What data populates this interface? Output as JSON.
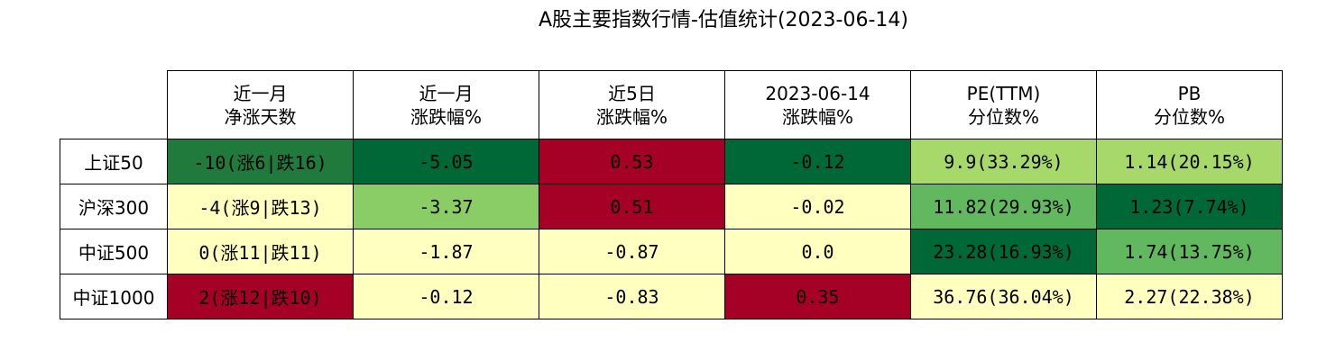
{
  "chart_data": {
    "type": "table",
    "title": "A股主要指数行情-估值统计(2023-06-14)",
    "columns": [
      [
        "近一月",
        "净涨天数"
      ],
      [
        "近一月",
        "涨跌幅%"
      ],
      [
        "近5日",
        "涨跌幅%"
      ],
      [
        "2023-06-14",
        "涨跌幅%"
      ],
      [
        "PE(TTM)",
        "分位数%"
      ],
      [
        "PB",
        "分位数%"
      ]
    ],
    "rows": [
      {
        "label": "上证50",
        "cells": [
          "-10(涨6|跌16)",
          "-5.05",
          "0.53",
          "-0.12",
          "9.9(33.29%)",
          "1.14(20.15%)"
        ],
        "colors": [
          "#1f7a3c",
          "#006837",
          "#a50026",
          "#006837",
          "#a6d96a",
          "#a6d96a"
        ]
      },
      {
        "label": "沪深300",
        "cells": [
          "-4(涨9|跌13)",
          "-3.37",
          "0.51",
          "-0.02",
          "11.82(29.93%)",
          "1.23(7.74%)"
        ],
        "colors": [
          "#ffffbf",
          "#8acd66",
          "#a50026",
          "#ffffbf",
          "#62b85e",
          "#006837"
        ]
      },
      {
        "label": "中证500",
        "cells": [
          "0(涨11|跌11)",
          "-1.87",
          "-0.87",
          "0.0",
          "23.28(16.93%)",
          "1.74(13.75%)"
        ],
        "colors": [
          "#ffffbf",
          "#ffffbf",
          "#ffffbf",
          "#ffffbf",
          "#006837",
          "#62b85e"
        ]
      },
      {
        "label": "中证1000",
        "cells": [
          "2(涨12|跌10)",
          "-0.12",
          "-0.83",
          "0.35",
          "36.76(36.04%)",
          "2.27(22.38%)"
        ],
        "colors": [
          "#a50026",
          "#ffffbf",
          "#ffffbf",
          "#a50026",
          "#ffffbf",
          "#ffffbf"
        ]
      }
    ]
  }
}
